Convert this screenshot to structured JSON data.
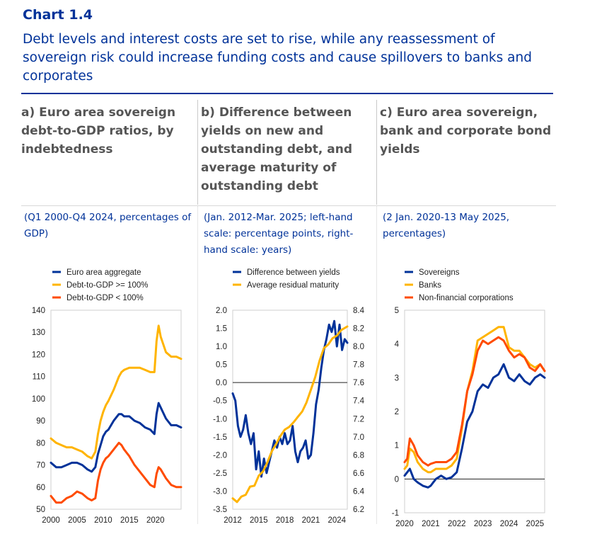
{
  "header": {
    "title": "Chart 1.4",
    "subtitle": "Debt levels and interest costs are set to rise, while any reassessment of sovereign risk could increase funding costs and cause spillovers to banks and corporates"
  },
  "panels": [
    {
      "title": "a) Euro area sovereign debt-to-GDP ratios, by indebtedness",
      "note": "(Q1 2000-Q4 2024, percentages of GDP)"
    },
    {
      "title": "b) Difference between yields on new and outstanding debt, and average maturity of outstanding debt",
      "note": "(Jan. 2012-Mar. 2025; left-hand scale: percentage points, right-hand scale: years)"
    },
    {
      "title": "c) Euro area sovereign, bank and corporate bond yields",
      "note": "(2 Jan. 2020-13 May 2025, percentages)"
    }
  ],
  "colors": {
    "navy": "#003299",
    "yellow": "#FFB400",
    "orange": "#FF4B00",
    "title": "#003299",
    "heading": "#555555"
  },
  "chart_data": [
    {
      "type": "line",
      "xlim": [
        2000,
        2024.9
      ],
      "ylim": [
        50,
        140
      ],
      "x_ticks": [
        "2000",
        "2005",
        "2010",
        "2015",
        "2020"
      ],
      "y_ticks": [
        "50",
        "60",
        "70",
        "80",
        "90",
        "100",
        "110",
        "120",
        "130",
        "140"
      ],
      "legend_position": "top-left",
      "series": [
        {
          "name": "Euro area aggregate",
          "color": "#003299",
          "x": [
            2000,
            2001,
            2002,
            2003,
            2004,
            2005,
            2006,
            2007,
            2007.8,
            2008.5,
            2009,
            2009.5,
            2010,
            2010.5,
            2011,
            2012,
            2013,
            2013.5,
            2014,
            2015,
            2016,
            2017,
            2018,
            2019,
            2019.8,
            2020.2,
            2020.6,
            2021,
            2022,
            2023,
            2024,
            2024.9
          ],
          "values": [
            71,
            69,
            69,
            70,
            71,
            71,
            70,
            68,
            67,
            69,
            75,
            79,
            83,
            85,
            86,
            90,
            93,
            93,
            92,
            92,
            90,
            89,
            87,
            86,
            84,
            93,
            98,
            96,
            91,
            88,
            88,
            87
          ]
        },
        {
          "name": "Debt-to-GDP >= 100%",
          "color": "#FFB400",
          "x": [
            2000,
            2001,
            2002,
            2003,
            2004,
            2005,
            2006,
            2007,
            2007.8,
            2008.5,
            2009,
            2009.5,
            2010,
            2010.5,
            2011,
            2012,
            2013,
            2013.5,
            2014,
            2015,
            2016,
            2017,
            2018,
            2019,
            2019.8,
            2020.2,
            2020.6,
            2021,
            2022,
            2023,
            2024,
            2024.9
          ],
          "values": [
            82,
            80,
            79,
            78,
            78,
            77,
            76,
            74,
            73,
            76,
            84,
            90,
            94,
            97,
            99,
            104,
            110,
            112,
            113,
            114,
            114,
            114,
            113,
            112,
            112,
            126,
            133,
            128,
            121,
            119,
            119,
            118
          ]
        },
        {
          "name": "Debt-to-GDP < 100%",
          "color": "#FF4B00",
          "x": [
            2000,
            2001,
            2002,
            2003,
            2004,
            2005,
            2006,
            2007,
            2007.8,
            2008.5,
            2009,
            2009.5,
            2010,
            2010.5,
            2011,
            2012,
            2013,
            2013.5,
            2014,
            2015,
            2016,
            2017,
            2018,
            2019,
            2019.8,
            2020.2,
            2020.6,
            2021,
            2022,
            2023,
            2024,
            2024.9
          ],
          "values": [
            56,
            53,
            53,
            55,
            56,
            58,
            57,
            55,
            54,
            55,
            63,
            68,
            71,
            73,
            74,
            77,
            80,
            79,
            77,
            74,
            70,
            67,
            64,
            61,
            60,
            66,
            69,
            68,
            64,
            61,
            60,
            60
          ]
        }
      ]
    },
    {
      "type": "line",
      "xlim": [
        2012,
        2025.2
      ],
      "ylim": [
        -3.5,
        2.0
      ],
      "y2lim": [
        6.2,
        8.4
      ],
      "x_ticks": [
        "2012",
        "2015",
        "2018",
        "2021",
        "2024"
      ],
      "y_ticks": [
        "-3.5",
        "-3.0",
        "-2.5",
        "-2.0",
        "-1.5",
        "-1.0",
        "-0.5",
        "0.0",
        "0.5",
        "1.0",
        "1.5",
        "2.0"
      ],
      "y2_ticks": [
        "6.2",
        "6.4",
        "6.6",
        "6.8",
        "7.0",
        "7.2",
        "7.4",
        "7.6",
        "7.8",
        "8.0",
        "8.2",
        "8.4"
      ],
      "legend_position": "top-left",
      "series": [
        {
          "name": "Difference between yields",
          "color": "#003299",
          "axis": "left",
          "x": [
            2012,
            2012.3,
            2012.6,
            2012.9,
            2013.2,
            2013.5,
            2013.8,
            2014.1,
            2014.4,
            2014.7,
            2015,
            2015.3,
            2015.6,
            2015.9,
            2016.2,
            2016.5,
            2016.8,
            2017.1,
            2017.4,
            2017.7,
            2018,
            2018.3,
            2018.6,
            2018.9,
            2019.2,
            2019.5,
            2019.8,
            2020.1,
            2020.4,
            2020.7,
            2021,
            2021.3,
            2021.6,
            2021.9,
            2022.2,
            2022.5,
            2022.8,
            2023.1,
            2023.4,
            2023.7,
            2024,
            2024.3,
            2024.6,
            2024.9,
            2025.2
          ],
          "values": [
            -0.3,
            -0.5,
            -1.2,
            -1.5,
            -1.3,
            -0.9,
            -1.4,
            -1.7,
            -1.4,
            -2.4,
            -1.9,
            -2.6,
            -2.1,
            -2.5,
            -2.2,
            -1.9,
            -1.6,
            -1.8,
            -1.5,
            -1.7,
            -1.4,
            -1.7,
            -1.6,
            -1.2,
            -1.9,
            -2.2,
            -1.9,
            -1.8,
            -1.6,
            -2.1,
            -2.0,
            -1.4,
            -0.6,
            -0.2,
            0.4,
            0.9,
            1.2,
            1.6,
            1.4,
            1.7,
            1.0,
            1.6,
            0.9,
            1.2,
            1.1
          ]
        },
        {
          "name": "Average residual maturity",
          "color": "#FFB400",
          "axis": "right",
          "x": [
            2012,
            2012.5,
            2013,
            2013.5,
            2014,
            2014.5,
            2015,
            2015.5,
            2016,
            2016.5,
            2017,
            2017.5,
            2018,
            2018.5,
            2019,
            2019.5,
            2020,
            2020.5,
            2021,
            2021.5,
            2022,
            2022.5,
            2023,
            2023.5,
            2024,
            2024.5,
            2025.2
          ],
          "values": [
            6.32,
            6.28,
            6.34,
            6.36,
            6.45,
            6.46,
            6.57,
            6.62,
            6.72,
            6.84,
            6.92,
            7.01,
            7.08,
            7.11,
            7.16,
            7.22,
            7.28,
            7.38,
            7.52,
            7.66,
            7.84,
            7.98,
            8.02,
            8.09,
            8.12,
            8.18,
            8.22
          ]
        }
      ]
    },
    {
      "type": "line",
      "xlim": [
        2020,
        2025.37
      ],
      "ylim": [
        -1,
        5
      ],
      "x_ticks": [
        "2020",
        "2021",
        "2022",
        "2023",
        "2024",
        "2025"
      ],
      "y_ticks": [
        "-1",
        "0",
        "1",
        "2",
        "3",
        "4",
        "5"
      ],
      "legend_position": "top-left",
      "series": [
        {
          "name": "Sovereigns",
          "color": "#003299",
          "x": [
            2020,
            2020.1,
            2020.2,
            2020.35,
            2020.5,
            2020.7,
            2020.9,
            2021,
            2021.2,
            2021.4,
            2021.6,
            2021.8,
            2022,
            2022.2,
            2022.4,
            2022.6,
            2022.8,
            2023,
            2023.2,
            2023.4,
            2023.6,
            2023.8,
            2024,
            2024.2,
            2024.4,
            2024.6,
            2024.8,
            2025,
            2025.2,
            2025.37
          ],
          "values": [
            0.1,
            0.2,
            0.3,
            0.0,
            -0.1,
            -0.2,
            -0.25,
            -0.2,
            0.0,
            0.1,
            0.0,
            0.05,
            0.2,
            0.9,
            1.7,
            2.0,
            2.6,
            2.8,
            2.7,
            3.0,
            3.1,
            3.4,
            3.0,
            2.9,
            3.1,
            2.9,
            2.8,
            3.0,
            3.1,
            3.0
          ]
        },
        {
          "name": "Banks",
          "color": "#FFB400",
          "x": [
            2020,
            2020.1,
            2020.2,
            2020.35,
            2020.5,
            2020.7,
            2020.9,
            2021,
            2021.2,
            2021.4,
            2021.6,
            2021.8,
            2022,
            2022.2,
            2022.4,
            2022.6,
            2022.8,
            2023,
            2023.2,
            2023.4,
            2023.6,
            2023.8,
            2024,
            2024.2,
            2024.4,
            2024.6,
            2024.8,
            2025,
            2025.2,
            2025.37
          ],
          "values": [
            0.3,
            0.4,
            0.9,
            0.8,
            0.5,
            0.3,
            0.2,
            0.2,
            0.3,
            0.3,
            0.3,
            0.4,
            0.6,
            1.5,
            2.6,
            3.2,
            4.1,
            4.2,
            4.3,
            4.4,
            4.5,
            4.5,
            3.9,
            3.8,
            3.8,
            3.6,
            3.4,
            3.3,
            3.4,
            3.2
          ]
        },
        {
          "name": "Non-financial corporations",
          "color": "#FF4B00",
          "x": [
            2020,
            2020.1,
            2020.2,
            2020.35,
            2020.5,
            2020.7,
            2020.9,
            2021,
            2021.2,
            2021.4,
            2021.6,
            2021.8,
            2022,
            2022.2,
            2022.4,
            2022.6,
            2022.8,
            2023,
            2023.2,
            2023.4,
            2023.6,
            2023.8,
            2024,
            2024.2,
            2024.4,
            2024.6,
            2024.8,
            2025,
            2025.2,
            2025.37
          ],
          "values": [
            0.5,
            0.6,
            1.2,
            1.0,
            0.7,
            0.5,
            0.4,
            0.45,
            0.5,
            0.5,
            0.5,
            0.6,
            0.8,
            1.6,
            2.6,
            3.1,
            3.8,
            4.1,
            4.0,
            4.1,
            4.2,
            4.1,
            3.8,
            3.6,
            3.7,
            3.6,
            3.3,
            3.2,
            3.4,
            3.2
          ]
        }
      ]
    }
  ]
}
